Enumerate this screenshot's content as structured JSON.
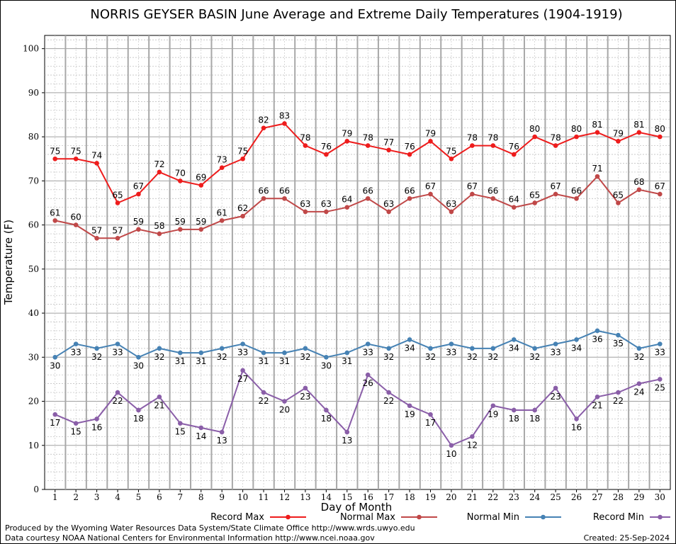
{
  "chart_data": {
    "type": "line",
    "title": "NORRIS GEYSER BASIN June Average and Extreme Daily Temperatures (1904-1919)",
    "xlabel": "Day of Month",
    "ylabel": "Temperature (F)",
    "x": [
      1,
      2,
      3,
      4,
      5,
      6,
      7,
      8,
      9,
      10,
      11,
      12,
      13,
      14,
      15,
      16,
      17,
      18,
      19,
      20,
      21,
      22,
      23,
      24,
      25,
      26,
      27,
      28,
      29,
      30
    ],
    "ylim": [
      0,
      103
    ],
    "yticks": [
      0,
      10,
      20,
      30,
      40,
      50,
      60,
      70,
      80,
      90,
      100
    ],
    "grid": true,
    "legend_position": "bottom",
    "series": [
      {
        "name": "Record Max",
        "color": "#ee1c1c",
        "label_pos": "above",
        "values": [
          75,
          75,
          74,
          65,
          67,
          72,
          70,
          69,
          73,
          75,
          82,
          83,
          78,
          76,
          79,
          78,
          77,
          76,
          79,
          75,
          78,
          78,
          76,
          80,
          78,
          80,
          81,
          79,
          81,
          80
        ]
      },
      {
        "name": "Normal Max",
        "color": "#c04848",
        "label_pos": "above",
        "values": [
          61,
          60,
          57,
          57,
          59,
          58,
          59,
          59,
          61,
          62,
          66,
          66,
          63,
          63,
          64,
          66,
          63,
          66,
          67,
          63,
          67,
          66,
          64,
          65,
          67,
          66,
          71,
          65,
          68,
          67
        ]
      },
      {
        "name": "Normal Min",
        "color": "#4682b4",
        "label_pos": "below",
        "values": [
          30,
          33,
          32,
          33,
          30,
          32,
          31,
          31,
          32,
          33,
          31,
          31,
          32,
          30,
          31,
          33,
          32,
          34,
          32,
          33,
          32,
          32,
          34,
          32,
          33,
          34,
          36,
          35,
          32,
          33
        ]
      },
      {
        "name": "Record Min",
        "color": "#8a5ea8",
        "label_pos": "below",
        "values": [
          17,
          15,
          16,
          22,
          18,
          21,
          15,
          14,
          13,
          27,
          22,
          20,
          23,
          18,
          13,
          26,
          22,
          19,
          17,
          10,
          12,
          19,
          18,
          18,
          23,
          16,
          21,
          22,
          24,
          25
        ]
      }
    ]
  },
  "footer": {
    "produced_by": "Produced by the Wyoming Water Resources Data System/State Climate Office http://www.wrds.uwyo.edu",
    "courtesy": "Data courtesy NOAA National Centers for Environmental Information http://www.ncei.noaa.gov",
    "created": "Created: 25-Sep-2024"
  }
}
